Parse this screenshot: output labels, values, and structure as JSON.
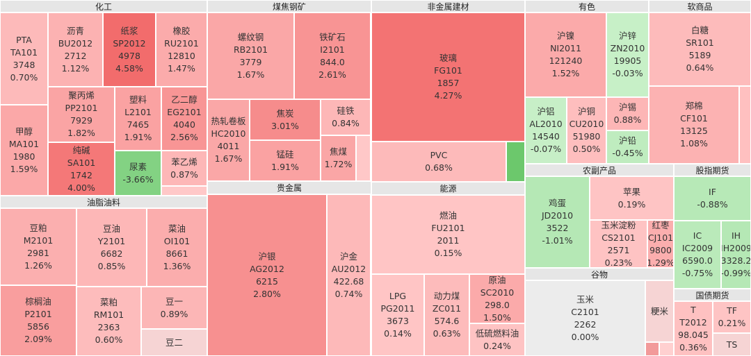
{
  "sectors": [
    {
      "title": "化工",
      "tiles": [
        {
          "name": "PTA",
          "code": "TA101",
          "price": "3748",
          "change": "0.70%"
        },
        {
          "name": "甲醇",
          "code": "MA101",
          "price": "1980",
          "change": "1.59%"
        },
        {
          "name": "沥青",
          "code": "BU2012",
          "price": "2712",
          "change": "1.12%"
        },
        {
          "name": "纸浆",
          "code": "SP2012",
          "price": "4978",
          "change": "4.58%"
        },
        {
          "name": "橡胶",
          "code": "RU2101",
          "price": "12810",
          "change": "1.47%"
        },
        {
          "name": "聚丙烯",
          "code": "PP2101",
          "price": "7929",
          "change": "1.82%"
        },
        {
          "name": "纯碱",
          "code": "SA101",
          "price": "1742",
          "change": "4.00%"
        },
        {
          "name": "塑料",
          "code": "L2101",
          "price": "7465",
          "change": "1.91%"
        },
        {
          "name": "乙二醇",
          "code": "EG2101",
          "price": "4040",
          "change": "2.56%"
        },
        {
          "name": "尿素",
          "change": "-3.66%"
        },
        {
          "name": "苯乙烯",
          "change": "0.87%"
        }
      ]
    },
    {
      "title": "油脂油料",
      "tiles": [
        {
          "name": "豆粕",
          "code": "M2101",
          "price": "2981",
          "change": "1.26%"
        },
        {
          "name": "棕榈油",
          "code": "P2101",
          "price": "5856",
          "change": "2.09%"
        },
        {
          "name": "豆油",
          "code": "Y2101",
          "price": "6682",
          "change": "0.85%"
        },
        {
          "name": "菜粕",
          "code": "RM101",
          "price": "2363",
          "change": "0.60%"
        },
        {
          "name": "菜油",
          "code": "OI101",
          "price": "8661",
          "change": "1.36%"
        },
        {
          "name": "豆一",
          "change": "0.89%"
        },
        {
          "name": "豆二"
        }
      ]
    },
    {
      "title": "煤焦钢矿",
      "tiles": [
        {
          "name": "螺纹钢",
          "code": "RB2101",
          "price": "3779",
          "change": "1.67%"
        },
        {
          "name": "铁矿石",
          "code": "I2101",
          "price": "844.0",
          "change": "2.61%"
        },
        {
          "name": "热轧卷板",
          "code": "HC2010",
          "price": "4011",
          "change": "1.67%"
        },
        {
          "name": "焦炭",
          "change": "3.01%"
        },
        {
          "name": "锰硅",
          "change": "1.91%"
        },
        {
          "name": "硅铁",
          "change": "0.84%"
        },
        {
          "name": "焦煤",
          "change": "1.72%"
        }
      ]
    },
    {
      "title": "贵金属",
      "tiles": [
        {
          "name": "沪银",
          "code": "AG2012",
          "price": "6215",
          "change": "2.80%"
        },
        {
          "name": "沪金",
          "code": "AU2012",
          "price": "422.68",
          "change": "0.74%"
        }
      ]
    },
    {
      "title": "非金属建材",
      "tiles": [
        {
          "name": "玻璃",
          "code": "FG101",
          "price": "1857",
          "change": "4.27%"
        },
        {
          "name": "PVC",
          "change": "0.68%"
        }
      ]
    },
    {
      "title": "能源",
      "tiles": [
        {
          "name": "燃油",
          "code": "FU2101",
          "price": "2011",
          "change": "0.15%"
        },
        {
          "name": "LPG",
          "code": "PG2011",
          "price": "3673",
          "change": "0.14%"
        },
        {
          "name": "动力煤",
          "code": "ZC011",
          "price": "574.6",
          "change": "0.63%"
        },
        {
          "name": "原油",
          "code": "SC2010",
          "price": "298.0",
          "change": "1.50%"
        },
        {
          "name": "低硫燃料油",
          "change": "0.24%"
        }
      ]
    },
    {
      "title": "有色",
      "tiles": [
        {
          "name": "沪镍",
          "code": "NI2011",
          "price": "121240",
          "change": "1.52%"
        },
        {
          "name": "沪锌",
          "code": "ZN2010",
          "price": "19905",
          "change": "-0.03%"
        },
        {
          "name": "沪铝",
          "code": "AL2010",
          "price": "14540",
          "change": "-0.07%"
        },
        {
          "name": "沪铜",
          "code": "CU2010",
          "price": "51980",
          "change": "0.50%"
        },
        {
          "name": "沪锡",
          "change": "0.88%"
        },
        {
          "name": "沪铅",
          "change": "-0.45%"
        }
      ]
    },
    {
      "title": "软商品",
      "tiles": [
        {
          "name": "白糖",
          "code": "SR101",
          "price": "5189",
          "change": "0.64%"
        },
        {
          "name": "郑棉",
          "code": "CF101",
          "price": "13125",
          "change": "1.08%"
        }
      ]
    },
    {
      "title": "农副产品",
      "tiles": [
        {
          "name": "鸡蛋",
          "code": "JD2010",
          "price": "3522",
          "change": "-1.01%"
        },
        {
          "name": "苹果",
          "change": "0.19%"
        },
        {
          "name": "玉米淀粉",
          "code": "CS2101",
          "price": "2571",
          "change": "0.23%"
        },
        {
          "name": "红枣",
          "code": "CJ101",
          "price": "9800",
          "change": "1.29%"
        }
      ]
    },
    {
      "title": "谷物",
      "tiles": [
        {
          "name": "玉米",
          "code": "C2101",
          "price": "2262",
          "change": "0.00%"
        },
        {
          "name": "粳米"
        }
      ]
    },
    {
      "title": "股指期货",
      "tiles": [
        {
          "name": "IF",
          "change": "-0.88%"
        },
        {
          "name": "IC",
          "code": "IC2009",
          "price": "6590.0",
          "change": "-0.75%"
        },
        {
          "name": "IH",
          "code": "IH2009",
          "price": "3328.2",
          "change": "-0.99%"
        }
      ]
    },
    {
      "title": "国债期货",
      "tiles": [
        {
          "name": "T",
          "code": "T2012",
          "price": "98.045",
          "change": "0.36%"
        },
        {
          "name": "TF",
          "change": "0.21%"
        },
        {
          "name": "TS"
        }
      ]
    }
  ]
}
